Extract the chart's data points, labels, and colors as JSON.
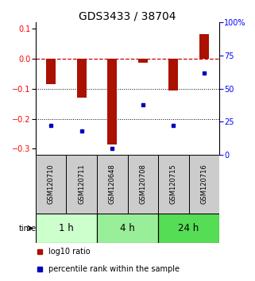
{
  "title": "GDS3433 / 38704",
  "samples": [
    "GSM120710",
    "GSM120711",
    "GSM120648",
    "GSM120708",
    "GSM120715",
    "GSM120716"
  ],
  "log10_ratio": [
    -0.085,
    -0.13,
    -0.285,
    -0.015,
    -0.105,
    0.08
  ],
  "percentile_rank": [
    22,
    18,
    5,
    38,
    22,
    62
  ],
  "groups": [
    {
      "label": "1 h",
      "indices": [
        0,
        1
      ],
      "color": "#ccffcc"
    },
    {
      "label": "4 h",
      "indices": [
        2,
        3
      ],
      "color": "#99ee99"
    },
    {
      "label": "24 h",
      "indices": [
        4,
        5
      ],
      "color": "#55dd55"
    }
  ],
  "ylim_left": [
    -0.32,
    0.12
  ],
  "ylim_right": [
    0,
    100
  ],
  "yticks_left": [
    0.1,
    0.0,
    -0.1,
    -0.2,
    -0.3
  ],
  "yticks_right": [
    100,
    75,
    50,
    25,
    0
  ],
  "bar_color": "#aa1100",
  "dot_color": "#0000bb",
  "hline_color": "#cc0000",
  "dotline_color": "#000000",
  "bg_color": "#ffffff",
  "plot_bg": "#ffffff",
  "title_fontsize": 10,
  "tick_fontsize": 7,
  "legend_fontsize": 7,
  "group_label_fontsize": 8.5,
  "sample_fontsize": 6
}
